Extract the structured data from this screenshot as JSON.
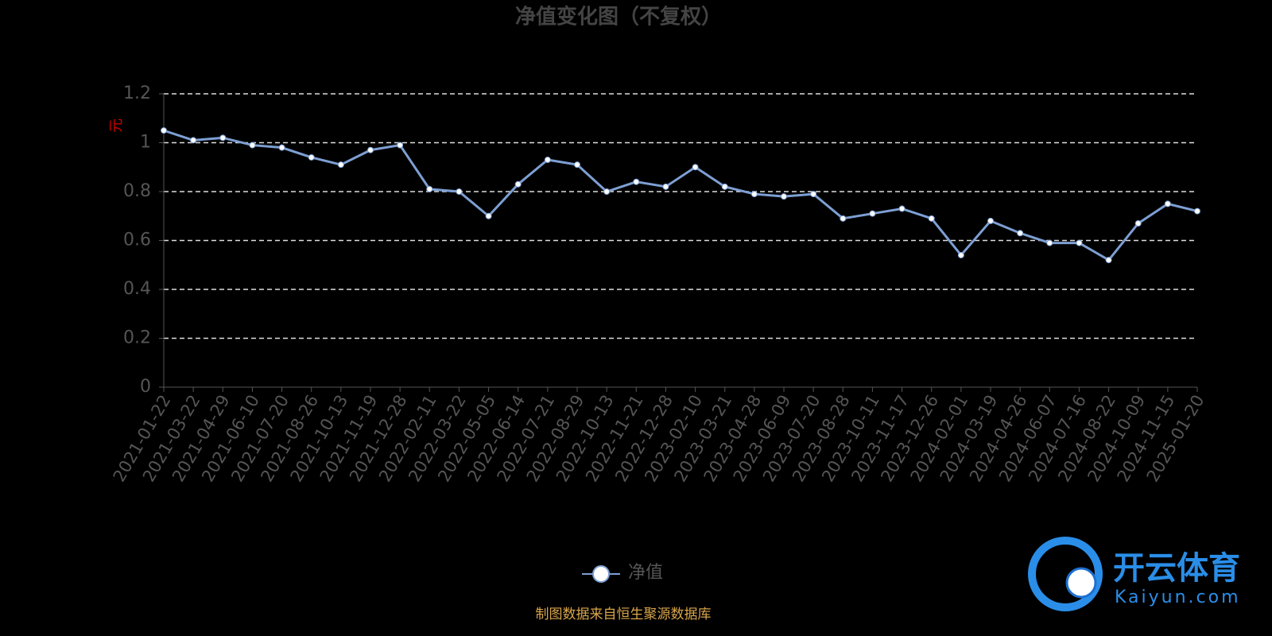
{
  "chart_data": {
    "type": "line",
    "title": "净值变化图（不复权）",
    "y_label": "元",
    "source": "制图数据来自恒生聚源数据库",
    "watermark": "开云体育",
    "watermark_sub": "Kaiyun.com",
    "categories": [
      "2021-01-22",
      "2021-03-22",
      "2021-04-29",
      "2021-06-10",
      "2021-07-20",
      "2021-08-26",
      "2021-10-13",
      "2021-11-19",
      "2021-12-28",
      "2022-02-11",
      "2022-03-22",
      "2022-05-05",
      "2022-06-14",
      "2022-07-21",
      "2022-08-29",
      "2022-10-13",
      "2022-11-21",
      "2022-12-28",
      "2023-02-10",
      "2023-03-21",
      "2023-04-28",
      "2023-06-09",
      "2023-07-20",
      "2023-08-28",
      "2023-10-11",
      "2023-11-17",
      "2023-12-26",
      "2024-02-01",
      "2024-03-19",
      "2024-04-26",
      "2024-06-07",
      "2024-07-16",
      "2024-08-22",
      "2024-10-09",
      "2024-11-15",
      "2025-01-20"
    ],
    "series": [
      {
        "name": "净值",
        "color": "#7d9fd3",
        "values": [
          1.05,
          1.01,
          1.02,
          0.99,
          0.98,
          0.94,
          0.91,
          0.97,
          0.99,
          0.81,
          0.8,
          0.7,
          0.83,
          0.93,
          0.91,
          0.8,
          0.84,
          0.82,
          0.9,
          0.82,
          0.79,
          0.78,
          0.79,
          0.69,
          0.71,
          0.73,
          0.69,
          0.54,
          0.68,
          0.63,
          0.59,
          0.59,
          0.52,
          0.67,
          0.75,
          0.72
        ]
      }
    ],
    "ylim": [
      0,
      1.2
    ],
    "yticks": [
      0,
      0.2,
      0.4,
      0.6,
      0.8,
      1,
      1.2
    ],
    "grid": true
  }
}
